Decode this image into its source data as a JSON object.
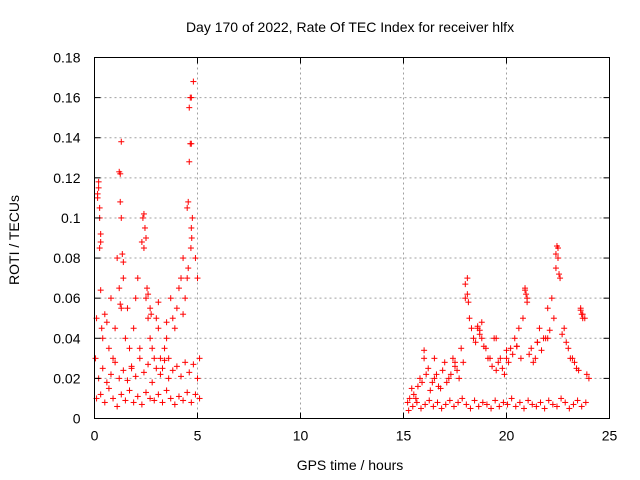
{
  "chart_data": {
    "type": "scatter",
    "title": "Day 170 of 2022, Rate Of TEC Index for receiver hlfx",
    "xlabel": "GPS time / hours",
    "ylabel": "ROTI / TECUs",
    "xlim": [
      0,
      25
    ],
    "ylim": [
      0,
      0.18
    ],
    "x_ticks": [
      0,
      5,
      10,
      15,
      20,
      25
    ],
    "x_tick_labels": [
      "0",
      "5",
      "10",
      "15",
      "20",
      "25"
    ],
    "y_ticks": [
      0,
      0.02,
      0.04,
      0.06,
      0.08,
      0.1,
      0.12,
      0.14,
      0.16,
      0.18
    ],
    "y_tick_labels": [
      "0",
      "0.02",
      "0.04",
      "0.06",
      "0.08",
      "0.1",
      "0.12",
      "0.14",
      "0.16",
      "0.18"
    ],
    "grid": true,
    "marker": "plus",
    "color": "#ff0000",
    "series": [
      {
        "x": [
          0.05,
          0.1,
          0.15,
          0.2,
          0.25,
          0.3,
          0.35,
          0.4,
          0.5,
          0.6,
          0.7,
          0.8,
          0.9,
          1.0,
          1.1,
          1.2,
          1.25,
          1.3,
          1.4,
          1.5,
          1.6,
          1.7,
          1.8,
          1.9,
          2.0,
          2.1,
          2.2,
          2.3,
          2.35,
          2.4,
          2.5,
          2.6,
          2.7,
          2.8,
          2.9,
          3.0,
          3.1,
          3.2,
          3.3,
          3.4,
          3.5,
          3.6,
          3.7,
          3.8,
          3.9,
          4.0,
          4.1,
          4.2,
          4.3,
          4.4,
          4.5,
          4.55,
          4.6,
          4.65,
          4.7,
          4.8,
          4.9,
          5.0,
          5.1,
          0.15,
          0.2,
          0.25,
          0.3,
          1.2,
          1.25,
          1.3,
          2.4,
          2.45,
          2.5,
          4.6,
          4.65,
          4.7,
          4.75,
          4.7,
          4.72,
          4.68,
          0.1,
          0.3,
          0.5,
          0.7,
          0.9,
          1.1,
          1.3,
          1.5,
          1.7,
          1.9,
          2.1,
          2.3,
          2.5,
          2.7,
          2.9,
          3.1,
          3.3,
          3.5,
          3.7,
          3.9,
          4.1,
          4.3,
          4.5,
          4.7,
          4.9,
          5.1,
          0.2,
          0.4,
          0.6,
          0.8,
          1.0,
          1.2,
          1.4,
          1.6,
          1.8,
          2.0,
          2.2,
          2.4,
          2.6,
          2.8,
          3.0,
          3.2,
          3.4,
          3.6,
          3.8,
          4.0,
          4.2,
          4.4,
          4.6,
          4.8,
          5.0,
          1.25,
          1.3,
          2.55,
          2.6,
          3.1,
          3.5,
          4.3,
          4.5,
          4.55,
          0.25,
          0.3,
          1.35,
          1.4,
          2.7,
          2.75
        ],
        "y": [
          0.03,
          0.05,
          0.112,
          0.118,
          0.105,
          0.064,
          0.045,
          0.04,
          0.052,
          0.048,
          0.035,
          0.06,
          0.03,
          0.045,
          0.08,
          0.065,
          0.122,
          0.138,
          0.07,
          0.04,
          0.055,
          0.035,
          0.025,
          0.045,
          0.06,
          0.07,
          0.035,
          0.088,
          0.1,
          0.085,
          0.06,
          0.05,
          0.04,
          0.035,
          0.03,
          0.05,
          0.045,
          0.03,
          0.025,
          0.035,
          0.04,
          0.03,
          0.06,
          0.05,
          0.045,
          0.055,
          0.065,
          0.07,
          0.08,
          0.06,
          0.105,
          0.108,
          0.128,
          0.137,
          0.16,
          0.168,
          0.08,
          0.07,
          0.03,
          0.11,
          0.115,
          0.1,
          0.092,
          0.123,
          0.108,
          0.1,
          0.102,
          0.095,
          0.09,
          0.155,
          0.16,
          0.137,
          0.1,
          0.095,
          0.09,
          0.085,
          0.01,
          0.012,
          0.008,
          0.015,
          0.01,
          0.006,
          0.012,
          0.009,
          0.014,
          0.008,
          0.011,
          0.007,
          0.013,
          0.01,
          0.009,
          0.012,
          0.008,
          0.014,
          0.01,
          0.007,
          0.011,
          0.009,
          0.013,
          0.008,
          0.012,
          0.01,
          0.02,
          0.025,
          0.018,
          0.022,
          0.028,
          0.02,
          0.024,
          0.019,
          0.026,
          0.021,
          0.03,
          0.023,
          0.027,
          0.018,
          0.025,
          0.022,
          0.029,
          0.02,
          0.024,
          0.026,
          0.021,
          0.028,
          0.023,
          0.027,
          0.02,
          0.057,
          0.055,
          0.065,
          0.062,
          0.058,
          0.048,
          0.052,
          0.07,
          0.075,
          0.085,
          0.088,
          0.082,
          0.078,
          0.055,
          0.052
        ]
      },
      {
        "x": [
          15.2,
          15.4,
          15.6,
          15.8,
          16.0,
          16.2,
          16.4,
          16.6,
          16.8,
          17.0,
          17.2,
          17.4,
          17.6,
          17.8,
          18.0,
          18.1,
          18.2,
          18.4,
          18.6,
          18.8,
          19.0,
          19.2,
          19.4,
          19.6,
          19.8,
          20.0,
          20.2,
          20.4,
          20.6,
          20.8,
          20.9,
          21.0,
          21.2,
          21.4,
          21.6,
          21.8,
          22.0,
          22.2,
          22.4,
          22.5,
          22.6,
          22.8,
          23.0,
          23.2,
          23.4,
          23.6,
          23.7,
          23.8,
          24.0,
          15.3,
          15.5,
          15.7,
          15.9,
          16.1,
          16.3,
          16.5,
          16.7,
          16.9,
          17.1,
          17.3,
          17.5,
          17.7,
          17.9,
          18.3,
          18.5,
          18.7,
          18.9,
          19.1,
          19.3,
          19.5,
          19.7,
          19.9,
          20.1,
          20.3,
          20.5,
          20.7,
          21.1,
          21.3,
          21.5,
          21.7,
          21.9,
          22.1,
          22.3,
          22.7,
          22.9,
          23.1,
          23.3,
          23.5,
          23.9,
          15.25,
          15.45,
          15.65,
          15.85,
          16.05,
          16.25,
          16.45,
          16.65,
          16.85,
          17.05,
          17.25,
          17.45,
          17.65,
          17.85,
          18.05,
          18.25,
          18.45,
          18.65,
          18.85,
          19.05,
          19.25,
          19.45,
          19.65,
          19.85,
          20.05,
          20.25,
          20.45,
          20.65,
          20.85,
          21.05,
          21.25,
          21.45,
          21.65,
          21.85,
          22.05,
          22.25,
          22.45,
          22.65,
          22.85,
          23.05,
          23.25,
          23.45,
          23.65,
          23.85,
          18.0,
          18.1,
          18.15,
          18.6,
          18.7,
          18.8,
          20.9,
          20.95,
          21.0,
          22.4,
          22.45,
          22.5,
          22.55,
          23.6,
          23.65,
          23.7,
          16.0,
          16.5,
          17.5,
          19.5,
          20.0,
          20.5,
          21.5,
          22.0
        ],
        "y": [
          0.008,
          0.015,
          0.01,
          0.02,
          0.03,
          0.025,
          0.018,
          0.022,
          0.015,
          0.028,
          0.02,
          0.03,
          0.024,
          0.035,
          0.06,
          0.07,
          0.05,
          0.04,
          0.045,
          0.048,
          0.035,
          0.03,
          0.04,
          0.028,
          0.025,
          0.03,
          0.035,
          0.04,
          0.045,
          0.05,
          0.065,
          0.06,
          0.035,
          0.03,
          0.045,
          0.04,
          0.055,
          0.06,
          0.075,
          0.085,
          0.07,
          0.045,
          0.035,
          0.03,
          0.025,
          0.055,
          0.052,
          0.05,
          0.02,
          0.01,
          0.012,
          0.016,
          0.018,
          0.022,
          0.014,
          0.02,
          0.016,
          0.024,
          0.018,
          0.022,
          0.026,
          0.02,
          0.028,
          0.045,
          0.038,
          0.042,
          0.036,
          0.03,
          0.026,
          0.024,
          0.03,
          0.022,
          0.028,
          0.032,
          0.036,
          0.03,
          0.032,
          0.028,
          0.038,
          0.034,
          0.04,
          0.044,
          0.05,
          0.042,
          0.038,
          0.03,
          0.028,
          0.024,
          0.022,
          0.004,
          0.006,
          0.008,
          0.005,
          0.007,
          0.009,
          0.006,
          0.008,
          0.005,
          0.007,
          0.009,
          0.006,
          0.008,
          0.01,
          0.007,
          0.005,
          0.009,
          0.006,
          0.008,
          0.007,
          0.005,
          0.009,
          0.006,
          0.008,
          0.007,
          0.01,
          0.006,
          0.008,
          0.005,
          0.009,
          0.007,
          0.006,
          0.008,
          0.005,
          0.009,
          0.007,
          0.006,
          0.01,
          0.008,
          0.005,
          0.007,
          0.009,
          0.006,
          0.008,
          0.067,
          0.062,
          0.058,
          0.046,
          0.044,
          0.04,
          0.064,
          0.062,
          0.058,
          0.082,
          0.086,
          0.08,
          0.072,
          0.054,
          0.052,
          0.05,
          0.034,
          0.03,
          0.028,
          0.04,
          0.034,
          0.036,
          0.038,
          0.04
        ]
      }
    ]
  }
}
